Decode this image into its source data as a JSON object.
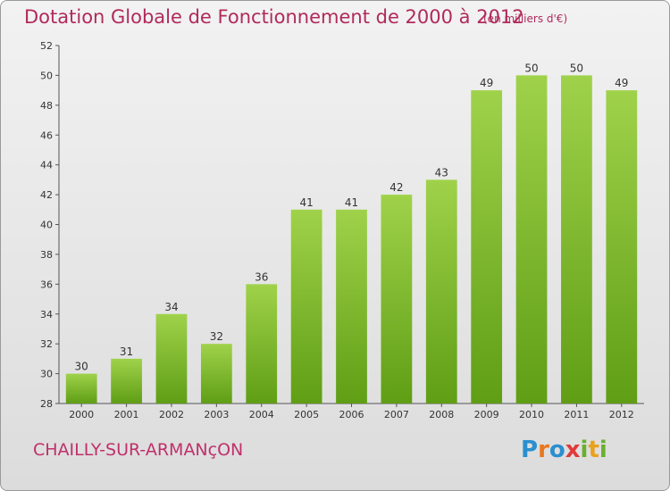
{
  "header": {
    "title": "Dotation Globale de Fonctionnement de 2000 à 2012",
    "subtitle": "(en milliers d'€)"
  },
  "footer": {
    "commune": "CHAILLY-SUR-ARMANçON",
    "logo": {
      "text": "Proxiti",
      "letters": [
        {
          "ch": "P",
          "color": "#2a8fcf"
        },
        {
          "ch": "r",
          "color": "#e8781e"
        },
        {
          "ch": "o",
          "color": "#2a8fcf"
        },
        {
          "ch": "x",
          "color": "#e03a3a"
        },
        {
          "ch": "i",
          "color": "#6ab02e"
        },
        {
          "ch": "t",
          "color": "#e8a21e"
        },
        {
          "ch": "i",
          "color": "#6ab02e"
        }
      ]
    }
  },
  "chart_data": {
    "type": "bar",
    "title": "Dotation Globale de Fonctionnement de 2000 à 2012",
    "subtitle": "(en milliers d'€)",
    "xlabel": "",
    "ylabel": "",
    "categories": [
      "2000",
      "2001",
      "2002",
      "2003",
      "2004",
      "2005",
      "2006",
      "2007",
      "2008",
      "2009",
      "2010",
      "2011",
      "2012"
    ],
    "values": [
      30,
      31,
      34,
      32,
      36,
      41,
      41,
      42,
      43,
      49,
      50,
      50,
      49
    ],
    "ylim": [
      28,
      52
    ],
    "yticks": [
      28,
      30,
      32,
      34,
      36,
      38,
      40,
      42,
      44,
      46,
      48,
      50,
      52
    ],
    "grid": false,
    "bar_color_top": "#9fd24a",
    "bar_color_bottom": "#5f9e15"
  }
}
